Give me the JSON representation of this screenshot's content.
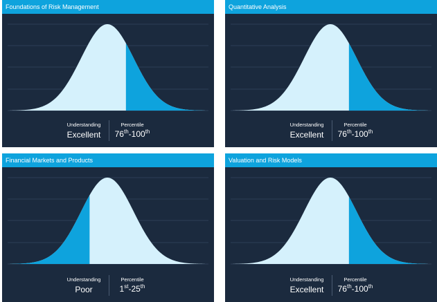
{
  "panels": [
    {
      "title": "Foundations of Risk Management",
      "understanding_label": "Understanding",
      "understanding": "Excellent",
      "percentile_label": "Percentile",
      "percentile": {
        "low": "76",
        "low_suffix": "th",
        "high": "-100",
        "high_suffix": "th"
      }
    },
    {
      "title": "Quantitative Analysis",
      "understanding_label": "Understanding",
      "understanding": "Excellent",
      "percentile_label": "Percentile",
      "percentile": {
        "low": "76",
        "low_suffix": "th",
        "high": "-100",
        "high_suffix": "th"
      }
    },
    {
      "title": "Financial Markets and Products",
      "understanding_label": "Understanding",
      "understanding": "Poor",
      "percentile_label": "Percentile",
      "percentile": {
        "low": "1",
        "low_suffix": "st",
        "high": "-25",
        "high_suffix": "th"
      }
    },
    {
      "title": "Valuation and Risk Models",
      "understanding_label": "Understanding",
      "understanding": "Excellent",
      "percentile_label": "Percentile",
      "percentile": {
        "low": "76",
        "low_suffix": "th",
        "high": "-100",
        "high_suffix": "th"
      }
    }
  ]
}
